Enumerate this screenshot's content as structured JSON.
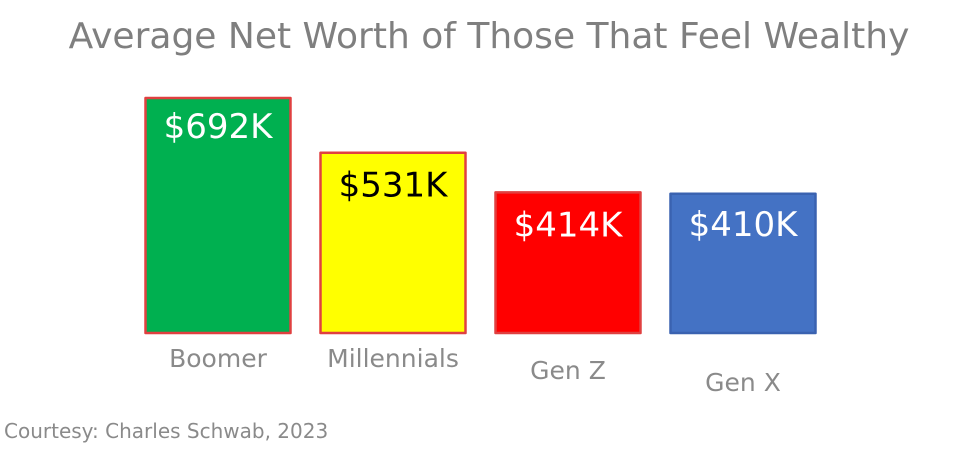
{
  "chart_data": {
    "type": "bar",
    "title": "Average Net Worth of Those That Feel Wealthy",
    "categories": [
      "Boomer",
      "Millennials",
      "Gen Z",
      "Gen X"
    ],
    "values": [
      692,
      531,
      414,
      410
    ],
    "value_labels": [
      "$692K",
      "$531K",
      "$414K",
      "$410K"
    ],
    "units": "thousands of USD",
    "bar_colors": [
      "#00b050",
      "#ffff00",
      "#ff0000",
      "#4472c4"
    ],
    "outline_colors": [
      "#e04040",
      "#e04040",
      "#e04040",
      "#3a62b0"
    ],
    "label_colors": [
      "#ffffff",
      "#000000",
      "#ffffff",
      "#ffffff"
    ],
    "grid": false,
    "legend": "none",
    "source": "Courtesy: Charles Schwab, 2023"
  }
}
